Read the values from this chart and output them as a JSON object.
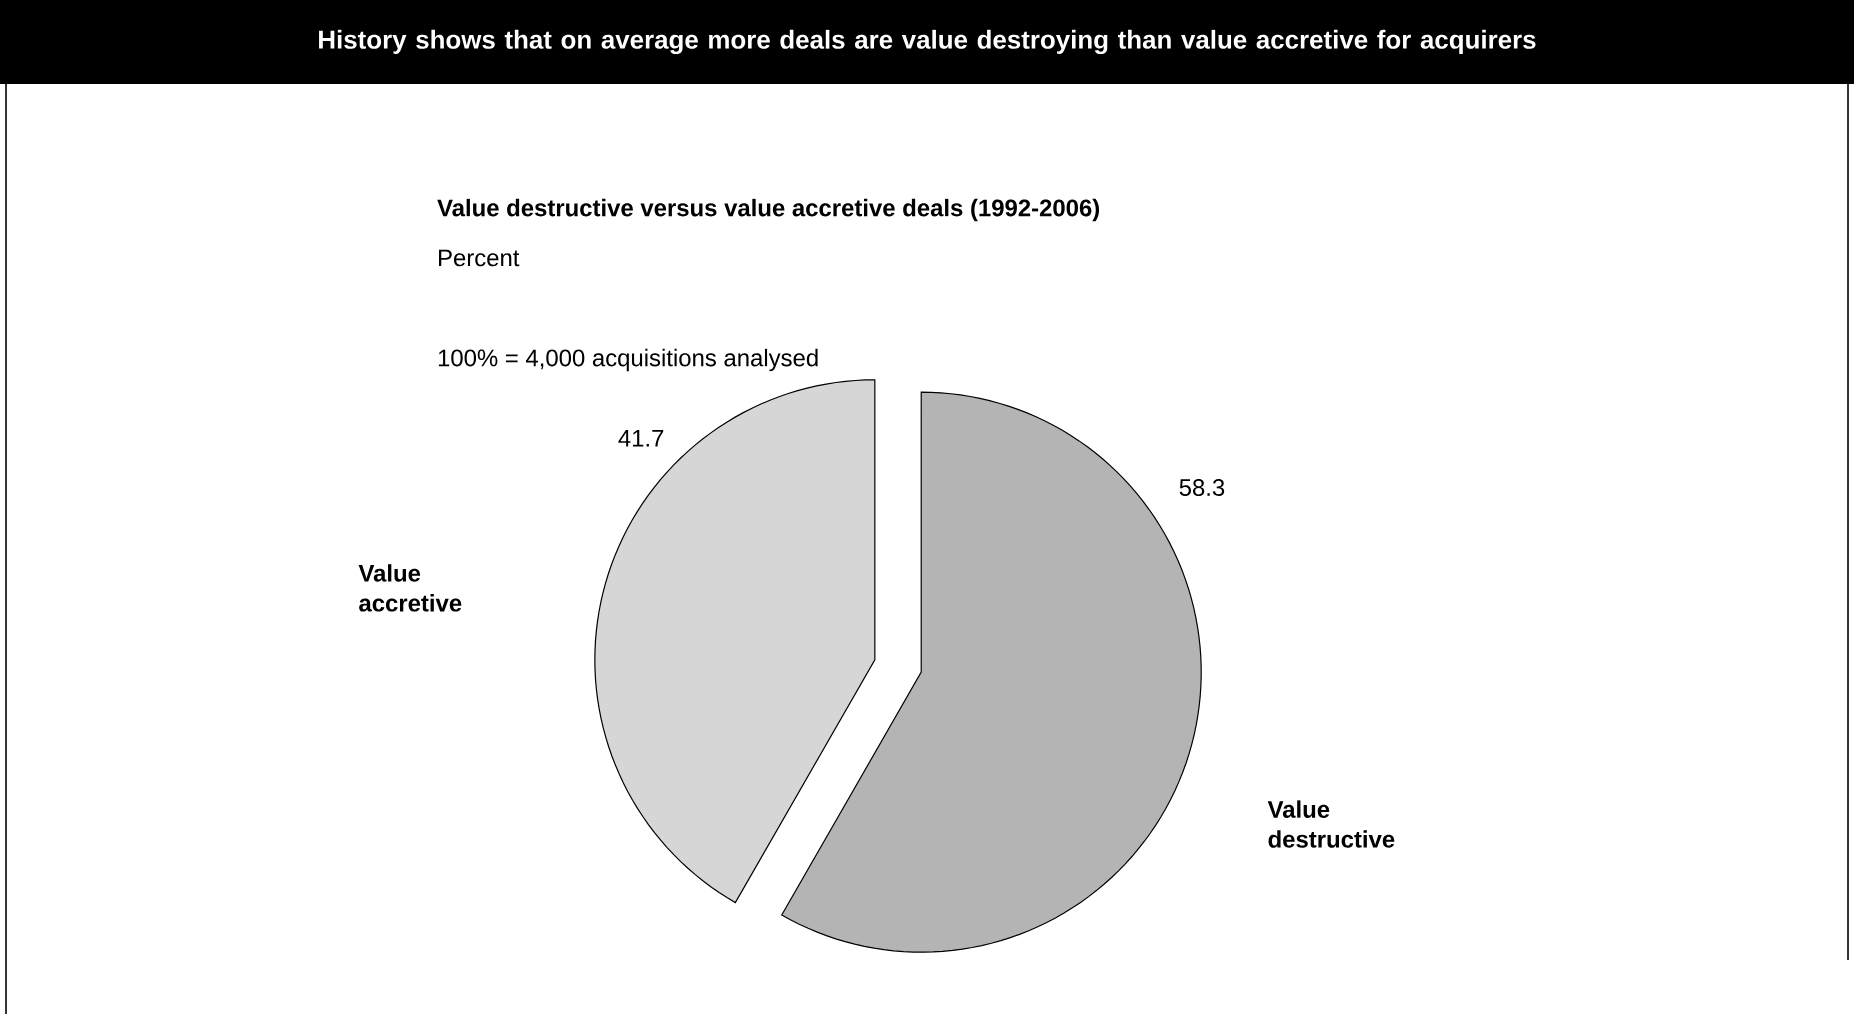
{
  "chart_data": {
    "type": "pie",
    "title": "History shows that on average more deals are value destroying than value accretive for acquirers",
    "subtitle": "Value destructive versus value accretive deals (1992-2006)",
    "annotations": [
      "Percent",
      "100% = 4,000 acquisitions analysed"
    ],
    "categories": [
      "Value accretive",
      "Value destructive"
    ],
    "values": [
      41.7,
      58.3
    ],
    "colors": [
      "#d6d6d6",
      "#b4b4b4"
    ],
    "data_labels": true
  }
}
